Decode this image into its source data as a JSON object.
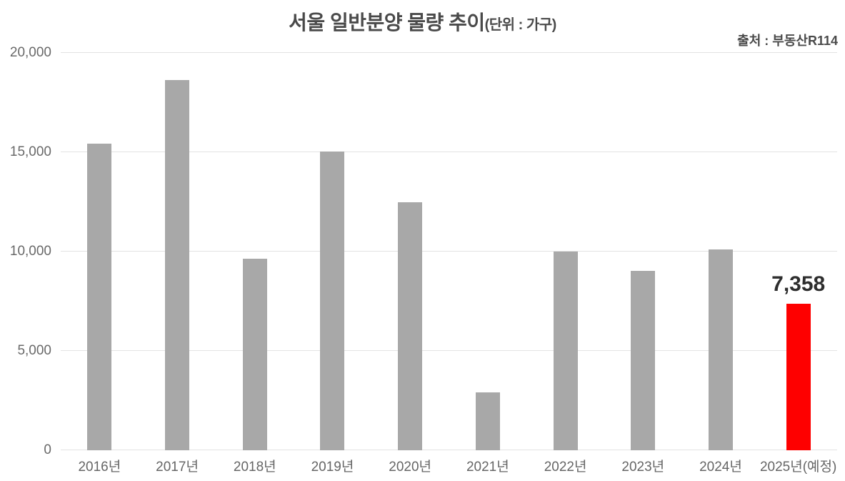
{
  "title": {
    "main": "서울 일반분양 물량 추이",
    "unit": "(단위 : 가구)"
  },
  "source": "출처 : 부동산R114",
  "colors": {
    "bar": "#a8a8a8",
    "highlight": "#fe0000",
    "grid": "#e3e3e3",
    "title_text": "#4a4a4a",
    "tick_text": "#666666",
    "value_label_text": "#2e2e2e"
  },
  "chart_data": {
    "type": "bar",
    "title": "서울 일반분양 물량 추이",
    "unit_label": "(단위 : 가구)",
    "source": "출처 : 부동산R114",
    "categories": [
      "2016년",
      "2017년",
      "2018년",
      "2019년",
      "2020년",
      "2021년",
      "2022년",
      "2023년",
      "2024년",
      "2025년(예정)"
    ],
    "values": [
      15450,
      18630,
      9650,
      15030,
      12500,
      2920,
      10000,
      9030,
      10110,
      7358
    ],
    "highlight_index": 9,
    "data_label": {
      "index": 9,
      "text": "7,358"
    },
    "ylim": [
      0,
      20000
    ],
    "yticks": [
      0,
      5000,
      10000,
      15000,
      20000
    ],
    "ytick_labels": [
      "0",
      "5,000",
      "10,000",
      "15,000",
      "20,000"
    ],
    "grid": true,
    "legend": false,
    "bar_color": "#a8a8a8",
    "highlight_color": "#fe0000"
  }
}
